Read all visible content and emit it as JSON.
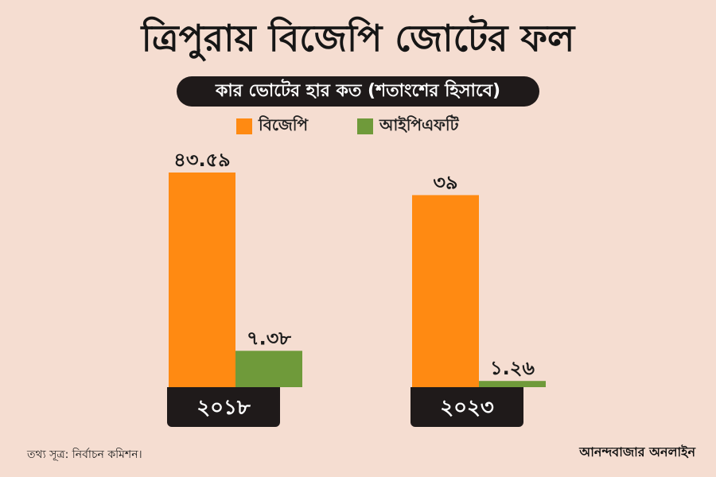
{
  "title": "ত্রিপুরায় বিজেপি জোটের ফল",
  "subtitle": "কার ভোটের হার কত (শতাংশের হিসাবে)",
  "source": "তথ্য সূত্র: নির্বাচন কমিশন।",
  "brand": "আনন্দবাজার অনলাইন",
  "colors": {
    "background": "#f5ddd1",
    "bjp": "#ff8a12",
    "ipft": "#6f9a3a",
    "dark": "#1f1a1a"
  },
  "chart_data": {
    "type": "bar",
    "title": "ত্রিপুরায় বিজেপি জোটের ফল",
    "subtitle": "কার ভোটের হার কত (শতাংশের হিসাবে)",
    "categories": [
      "২০১৮",
      "২০২৩"
    ],
    "series": [
      {
        "name": "বিজেপি",
        "color": "#ff8a12",
        "values": [
          43.59,
          39
        ],
        "labels": [
          "৪৩.৫৯",
          "৩৯"
        ]
      },
      {
        "name": "আইপিএফটি",
        "color": "#6f9a3a",
        "values": [
          7.38,
          1.26
        ],
        "labels": [
          "৭.৩৮",
          "১.২৬"
        ]
      }
    ],
    "legend_position": "top",
    "grid": false,
    "ylim": [
      0,
      43.59
    ]
  }
}
